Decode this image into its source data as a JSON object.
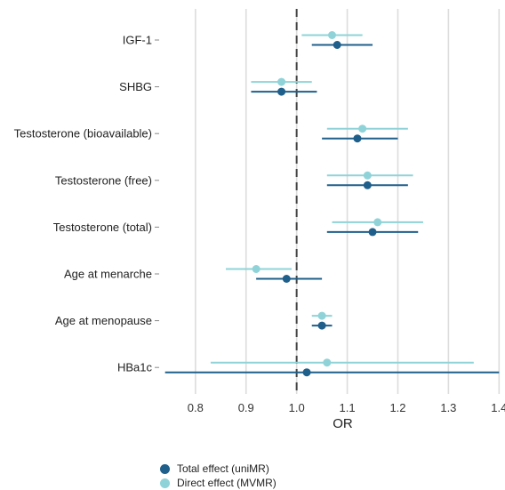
{
  "chart_data": {
    "type": "scatter",
    "subtype": "forest-plot",
    "xlabel": "OR",
    "xlim": [
      0.73,
      1.41
    ],
    "xticks": [
      0.8,
      0.9,
      1.0,
      1.1,
      1.2,
      1.3,
      1.4
    ],
    "xtick_labels": [
      "0.8",
      "0.9",
      "1.0",
      "1.1",
      "1.2",
      "1.3",
      "1.4"
    ],
    "reference_line": 1.0,
    "grid": "vertical",
    "legend_position": "bottom",
    "categories": [
      "IGF-1",
      "SHBG",
      "Testosterone (bioavailable)",
      "Testosterone (free)",
      "Testosterone (total)",
      "Age at menarche",
      "Age at menopause",
      "HBa1c"
    ],
    "series": [
      {
        "name": "Total effect (uniMR)",
        "color": "#1f5f8b",
        "estimates": [
          1.08,
          0.97,
          1.12,
          1.14,
          1.15,
          0.98,
          1.05,
          1.02
        ],
        "lower": [
          1.03,
          0.91,
          1.05,
          1.06,
          1.06,
          0.92,
          1.03,
          0.74
        ],
        "upper": [
          1.15,
          1.04,
          1.2,
          1.22,
          1.24,
          1.05,
          1.07,
          1.4
        ]
      },
      {
        "name": "Direct effect (MVMR)",
        "color": "#8fd3d8",
        "estimates": [
          1.07,
          0.97,
          1.13,
          1.14,
          1.16,
          0.92,
          1.05,
          1.06
        ],
        "lower": [
          1.01,
          0.91,
          1.06,
          1.06,
          1.07,
          0.86,
          1.03,
          0.83
        ],
        "upper": [
          1.13,
          1.03,
          1.22,
          1.23,
          1.25,
          0.99,
          1.07,
          1.35
        ]
      }
    ]
  }
}
